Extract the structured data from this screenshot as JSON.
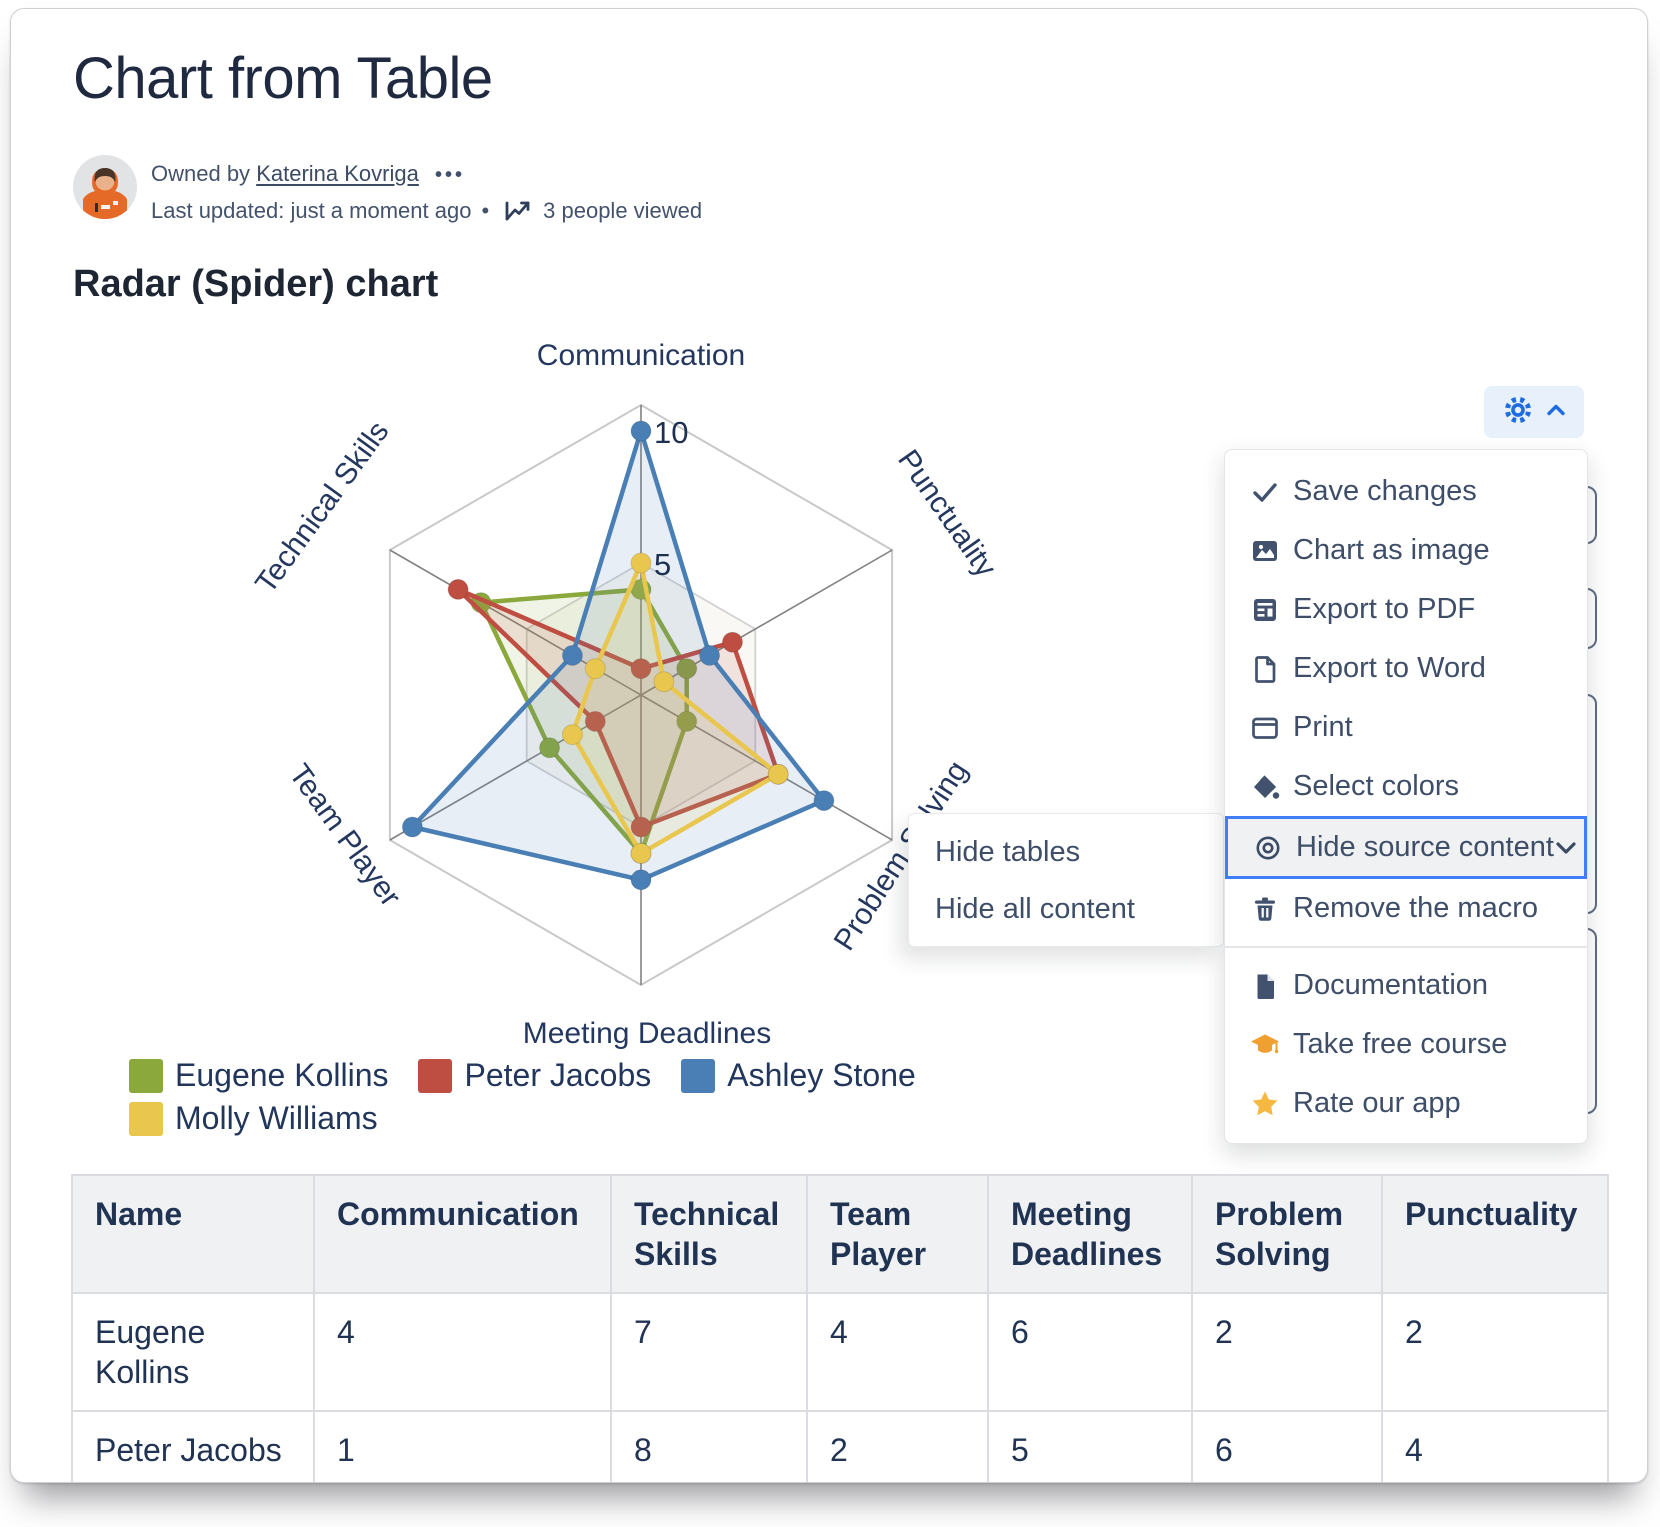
{
  "page": {
    "title": "Chart from Table",
    "section_heading": "Radar (Spider) chart"
  },
  "byline": {
    "owned_by_prefix": "Owned by",
    "owner": "Katerina Kovriga",
    "kebab": "•••",
    "last_updated": "Last updated: just a moment ago",
    "separator": "•",
    "views_label": "3 people viewed"
  },
  "gear_button": {
    "accent": "#1f6be0",
    "background": "#e8f0fb"
  },
  "menu": {
    "icon_color": "#42526e",
    "highlight_border": "#3f7ef7",
    "orange": "#f0a030",
    "star_color": "#f6b840",
    "items": [
      {
        "icon": "check-icon",
        "label": "Save changes"
      },
      {
        "icon": "image-icon",
        "label": "Chart as image"
      },
      {
        "icon": "export-pdf-icon",
        "label": "Export to PDF"
      },
      {
        "icon": "export-word-icon",
        "label": "Export to Word"
      },
      {
        "icon": "print-icon",
        "label": "Print"
      },
      {
        "icon": "select-colors-icon",
        "label": "Select colors"
      },
      {
        "icon": "eye-icon",
        "label": "Hide source content",
        "highlighted": true,
        "chevron": true
      },
      {
        "icon": "trash-icon",
        "label": "Remove the macro"
      },
      {
        "divider": true
      },
      {
        "icon": "document-icon",
        "label": "Documentation"
      },
      {
        "icon": "graduation-cap-icon",
        "label": "Take free course"
      },
      {
        "icon": "star-icon",
        "label": "Rate our app"
      }
    ]
  },
  "submenu": {
    "items": [
      "Hide tables",
      "Hide all content"
    ]
  },
  "chart_data": {
    "type": "radar",
    "title": "Radar (Spider) chart",
    "axes": [
      "Communication",
      "Punctuality",
      "Problem Solving",
      "Meeting Deadlines",
      "Team Player",
      "Technical Skills"
    ],
    "scale_max": 10,
    "ticks": [
      {
        "value": 10,
        "label": "10"
      },
      {
        "value": 5,
        "label": "5"
      }
    ],
    "grid": "hexagon gridlines at 5 and outer rim, 6 radial spokes",
    "legend_position": "bottom-left",
    "series": [
      {
        "name": "Eugene Kollins",
        "color": "#8ba83d",
        "values": [
          4,
          2,
          2,
          6,
          4,
          7
        ]
      },
      {
        "name": "Peter Jacobs",
        "color": "#bf4e42",
        "values": [
          1,
          4,
          6,
          5,
          2,
          8
        ]
      },
      {
        "name": "Ashley Stone",
        "color": "#4a7fb5",
        "values": [
          10,
          3,
          8,
          7,
          10,
          3
        ]
      },
      {
        "name": "Molly Williams",
        "color": "#e9c64e",
        "values": [
          5,
          1,
          6,
          6,
          3,
          2
        ]
      }
    ]
  },
  "table": {
    "headers": [
      "Name",
      "Communication",
      "Technical Skills",
      "Team Player",
      "Meeting Deadlines",
      "Problem Solving",
      "Punctuality"
    ],
    "rows": [
      {
        "name": "Eugene Kollins",
        "values": [
          "4",
          "7",
          "4",
          "6",
          "2",
          "2"
        ]
      },
      {
        "name": "Peter Jacobs",
        "values": [
          "1",
          "8",
          "2",
          "5",
          "6",
          "4"
        ]
      }
    ]
  }
}
